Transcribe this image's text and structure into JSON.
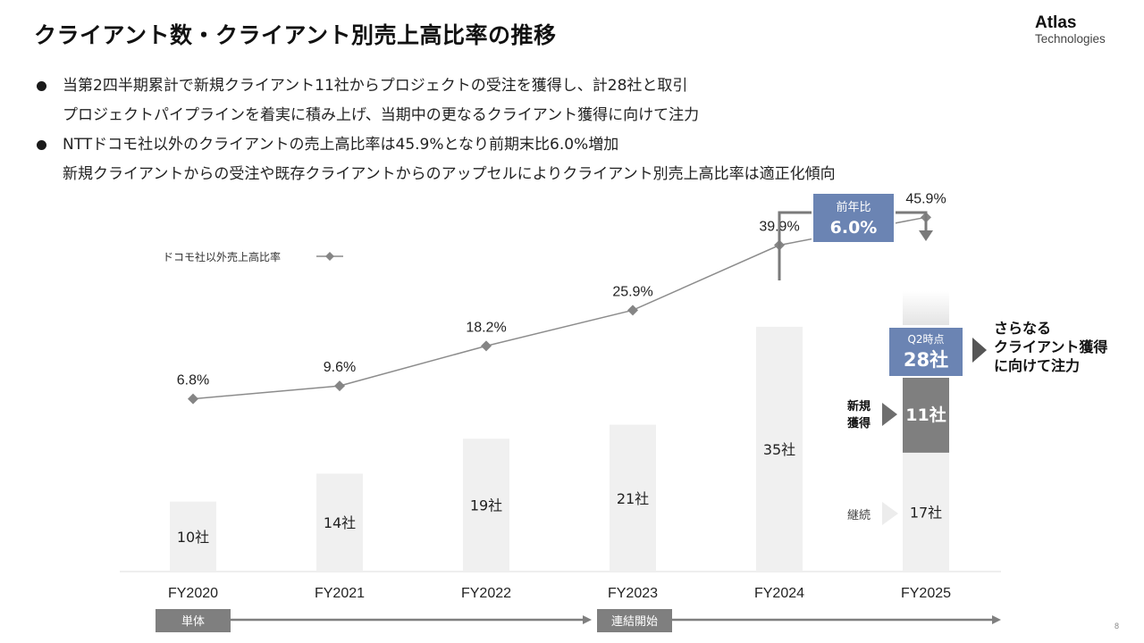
{
  "title": "クライアント数・クライアント別売上高比率の推移",
  "logo": {
    "name": "Atlas",
    "sub": "Technologies"
  },
  "bullets": [
    {
      "lines": [
        "当第2四半期累計で新規クライアント11社からプロジェクトの受注を獲得し、計28社と取引",
        "プロジェクトパイプラインを着実に積み上げ、当期中の更なるクライアント獲得に向けて注力"
      ]
    },
    {
      "lines": [
        "NTTドコモ社以外のクライアントの売上高比率は45.9%となり前期末比6.0%増加",
        "新規クライアントからの受注や既存クライアントからのアップセルによりクライアント別売上高比率は適正化傾向"
      ]
    }
  ],
  "chart_data": {
    "type": "bar",
    "categories": [
      "FY2020",
      "FY2021",
      "FY2022",
      "FY2023",
      "FY2024",
      "FY2025"
    ],
    "bar_values": [
      10,
      14,
      19,
      21,
      35,
      28
    ],
    "bar_labels": [
      "10社",
      "14社",
      "19社",
      "21社",
      "35社",
      ""
    ],
    "fy2025_stack": {
      "continuing": {
        "label": "継続",
        "value": 17,
        "value_label": "17社"
      },
      "new": {
        "label_line1": "新規",
        "label_line2": "獲得",
        "value": 11,
        "value_label": "11社"
      },
      "total_badge": {
        "line1": "Q2時点",
        "line2": "28社"
      }
    },
    "line_series": {
      "name": "ドコモ社以外売上高比率",
      "values": [
        6.8,
        9.6,
        18.2,
        25.9,
        39.9,
        45.9
      ],
      "value_labels": [
        "6.8%",
        "9.6%",
        "18.2%",
        "25.9%",
        "39.9%",
        "45.9%"
      ]
    },
    "yoy_badge": {
      "line1": "前年比",
      "line2": "6.0%"
    },
    "callout": [
      "さらなる",
      "クライアント獲得",
      "に向けて注力"
    ],
    "timeline": {
      "start_label": "単体",
      "mid_label": "連結開始"
    },
    "colors": {
      "bar": "#f0f0f0",
      "new_bar": "#7f7f7f",
      "badge": "#6b84b3",
      "line": "#8c8c8c",
      "marker": "#858585"
    }
  },
  "page_number": "8"
}
